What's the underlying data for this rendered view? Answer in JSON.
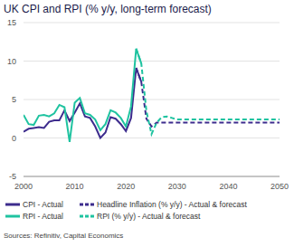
{
  "chart_data": {
    "type": "line",
    "title": "UK CPI and RPI (% y/y, long-term forecast)",
    "source": "Sources: Refinitiv, Capital Economics",
    "x": [
      2000,
      2001,
      2002,
      2003,
      2004,
      2005,
      2006,
      2007,
      2008,
      2009,
      2010,
      2011,
      2012,
      2013,
      2014,
      2015,
      2016,
      2017,
      2018,
      2019,
      2020,
      2021,
      2022,
      2023,
      2024,
      2025,
      2026,
      2027,
      2028,
      2029,
      2030,
      2031,
      2032,
      2033,
      2034,
      2035,
      2036,
      2037,
      2038,
      2039,
      2040,
      2041,
      2042,
      2043,
      2044,
      2045,
      2046,
      2047,
      2048,
      2049,
      2050
    ],
    "xlim": [
      2000,
      2050
    ],
    "xticks": [
      2000,
      2010,
      2020,
      2030,
      2040,
      2050
    ],
    "ylim": [
      -5,
      15
    ],
    "yticks": [
      -5,
      0,
      5,
      10,
      15
    ],
    "grid": true,
    "legend": "bottom",
    "series": [
      {
        "name": "CPI - Actual",
        "color": "#3d2c8d",
        "line_style": "solid",
        "values": [
          0.8,
          1.2,
          1.3,
          1.4,
          1.3,
          2.1,
          2.3,
          2.3,
          3.6,
          2.2,
          3.3,
          4.5,
          2.8,
          2.6,
          1.5,
          0,
          0.7,
          2.7,
          2.5,
          1.8,
          0.9,
          2.6,
          9.1,
          7.3,
          null,
          null,
          null,
          null,
          null,
          null,
          null,
          null,
          null,
          null,
          null,
          null,
          null,
          null,
          null,
          null,
          null,
          null,
          null,
          null,
          null,
          null,
          null,
          null,
          null,
          null,
          null
        ]
      },
      {
        "name": "Headline Inflation (% y/y) - Actual & forecast",
        "color": "#3d2c8d",
        "line_style": "dashed",
        "values": [
          null,
          null,
          null,
          null,
          null,
          null,
          null,
          null,
          null,
          null,
          null,
          null,
          null,
          null,
          null,
          null,
          null,
          null,
          null,
          null,
          null,
          null,
          9.1,
          7.3,
          2.5,
          1.5,
          2,
          2,
          2,
          2,
          2,
          2,
          2,
          2,
          2,
          2,
          2,
          2,
          2,
          2,
          2,
          2,
          2,
          2,
          2,
          2,
          2,
          2,
          2,
          2,
          2
        ]
      },
      {
        "name": "RPI - Actual",
        "color": "#1fc3a0",
        "line_style": "solid",
        "values": [
          3,
          1.8,
          1.7,
          2.9,
          3,
          2.8,
          3.2,
          4.3,
          4,
          -0.5,
          4.6,
          5.2,
          3.2,
          3,
          2.4,
          1,
          1.8,
          3.6,
          3.3,
          2.6,
          1.5,
          4.1,
          11.6,
          9.7,
          null,
          null,
          null,
          null,
          null,
          null,
          null,
          null,
          null,
          null,
          null,
          null,
          null,
          null,
          null,
          null,
          null,
          null,
          null,
          null,
          null,
          null,
          null,
          null,
          null,
          null,
          null
        ]
      },
      {
        "name": "RPI (% y/y) - Actual & forecast",
        "color": "#1fc3a0",
        "line_style": "dashed",
        "values": [
          null,
          null,
          null,
          null,
          null,
          null,
          null,
          null,
          null,
          null,
          null,
          null,
          null,
          null,
          null,
          null,
          null,
          null,
          null,
          null,
          null,
          null,
          11.6,
          9.7,
          3.5,
          0.5,
          2,
          2.7,
          2.8,
          2.6,
          2.4,
          2.4,
          2.4,
          2.4,
          2.4,
          2.4,
          2.4,
          2.4,
          2.4,
          2.4,
          2.4,
          2.4,
          2.4,
          2.4,
          2.4,
          2.4,
          2.4,
          2.4,
          2.4,
          2.4,
          2.4
        ]
      }
    ]
  }
}
